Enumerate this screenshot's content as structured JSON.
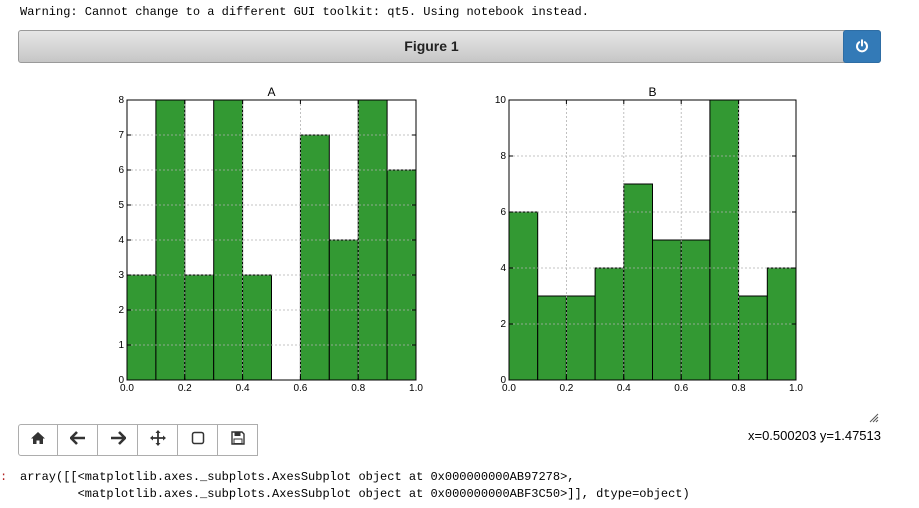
{
  "warning": "Warning: Cannot change to a different GUI toolkit: qt5. Using notebook instead.",
  "figure": {
    "title": "Figure 1"
  },
  "colors": {
    "bar": "#339933",
    "bar_edge": "#000000",
    "accent": "#337ab7",
    "grid": "#b0b0b0"
  },
  "toolbar": {
    "buttons": [
      {
        "name": "home-button",
        "icon": "home-icon"
      },
      {
        "name": "back-button",
        "icon": "arrow-left-icon"
      },
      {
        "name": "forward-button",
        "icon": "arrow-right-icon"
      },
      {
        "name": "pan-button",
        "icon": "move-icon"
      },
      {
        "name": "zoom-button",
        "icon": "square-icon"
      },
      {
        "name": "save-button",
        "icon": "floppy-icon"
      }
    ]
  },
  "status": {
    "coords": "x=0.500203 y=1.47513"
  },
  "output": {
    "prompt": ":",
    "line1": "array([[<matplotlib.axes._subplots.AxesSubplot object at 0x000000000AB97278>,",
    "line2": "        <matplotlib.axes._subplots.AxesSubplot object at 0x000000000ABF3C50>]], dtype=object)"
  },
  "chart_data": [
    {
      "type": "bar",
      "title": "A",
      "bin_edges": [
        0.0,
        0.1,
        0.2,
        0.3,
        0.4,
        0.5,
        0.6,
        0.7,
        0.8,
        0.9,
        1.0
      ],
      "values": [
        3,
        8,
        3,
        8,
        3,
        0,
        7,
        4,
        8,
        6
      ],
      "xlim": [
        0.0,
        1.0
      ],
      "ylim": [
        0,
        8
      ],
      "xticks": [
        "0.0",
        "0.2",
        "0.4",
        "0.6",
        "0.8",
        "1.0"
      ],
      "yticks": [
        "0",
        "1",
        "2",
        "3",
        "4",
        "5",
        "6",
        "7",
        "8"
      ],
      "grid": true
    },
    {
      "type": "bar",
      "title": "B",
      "bin_edges": [
        0.0,
        0.1,
        0.2,
        0.3,
        0.4,
        0.5,
        0.6,
        0.7,
        0.8,
        0.9,
        1.0
      ],
      "values": [
        6,
        3,
        3,
        4,
        7,
        5,
        5,
        10,
        3,
        4
      ],
      "xlim": [
        0.0,
        1.0
      ],
      "ylim": [
        0,
        10
      ],
      "xticks": [
        "0.0",
        "0.2",
        "0.4",
        "0.6",
        "0.8",
        "1.0"
      ],
      "yticks": [
        "0",
        "2",
        "4",
        "6",
        "8",
        "10"
      ],
      "grid": true
    }
  ]
}
